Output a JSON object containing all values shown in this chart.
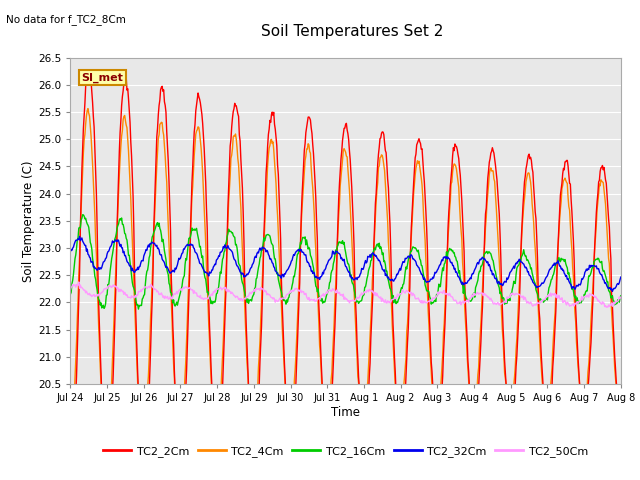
{
  "title": "Soil Temperatures Set 2",
  "no_data_text": "No data for f_TC2_8Cm",
  "si_met_label": "SI_met",
  "xlabel": "Time",
  "ylabel": "Soil Temperature (C)",
  "ylim": [
    20.5,
    26.5
  ],
  "yticks": [
    20.5,
    21.0,
    21.5,
    22.0,
    22.5,
    23.0,
    23.5,
    24.0,
    24.5,
    25.0,
    25.5,
    26.0,
    26.5
  ],
  "xtick_labels": [
    "Jul 24",
    "Jul 25",
    "Jul 26",
    "Jul 27",
    "Jul 28",
    "Jul 29",
    "Jul 30",
    "Jul 31",
    "Aug 1",
    "Aug 2",
    "Aug 3",
    "Aug 4",
    "Aug 5",
    "Aug 6",
    "Aug 7",
    "Aug 8"
  ],
  "colors": {
    "TC2_2Cm": "#ff0000",
    "TC2_4Cm": "#ff8800",
    "TC2_16Cm": "#00cc00",
    "TC2_32Cm": "#0000ee",
    "TC2_50Cm": "#ff99ff"
  },
  "bg_color": "#e8e8e8",
  "fig_bg": "#ffffff",
  "line_width": 1.0,
  "n_points": 721,
  "days": 15
}
